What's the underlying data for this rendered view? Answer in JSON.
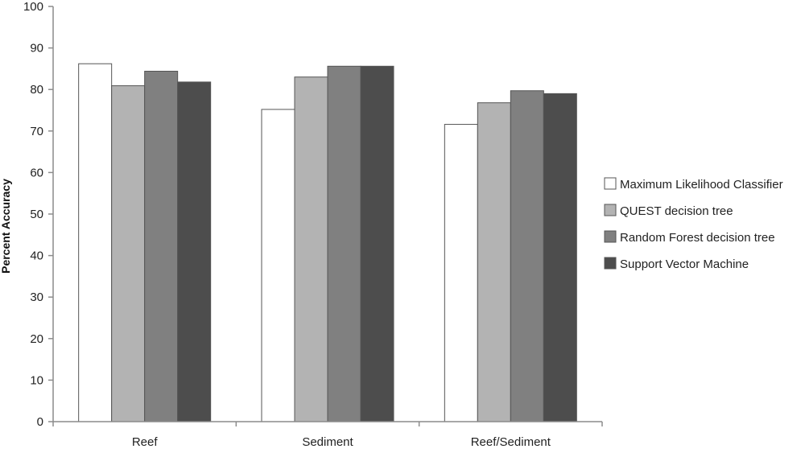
{
  "chart_data": {
    "type": "bar",
    "title": "",
    "xlabel": "",
    "ylabel": "Percent Accuracy",
    "ylim": [
      0,
      100
    ],
    "yticks": [
      0,
      10,
      20,
      30,
      40,
      50,
      60,
      70,
      80,
      90,
      100
    ],
    "grid": false,
    "legend_position": "right",
    "categories": [
      "Reef",
      "Sediment",
      "Reef/Sediment"
    ],
    "series": [
      {
        "name": "Maximum Likelihood Classifier",
        "values": [
          86.2,
          75.2,
          71.6
        ],
        "color": "#ffffff"
      },
      {
        "name": "QUEST decision tree",
        "values": [
          80.9,
          83.0,
          76.8
        ],
        "color": "#b3b3b3"
      },
      {
        "name": "Random Forest decision tree",
        "values": [
          84.4,
          85.6,
          79.7
        ],
        "color": "#808080"
      },
      {
        "name": "Support Vector Machine",
        "values": [
          81.8,
          85.6,
          79.0
        ],
        "color": "#4d4d4d"
      }
    ],
    "bar_stroke_color": "#555555",
    "axis_color": "#8c8c8c"
  }
}
